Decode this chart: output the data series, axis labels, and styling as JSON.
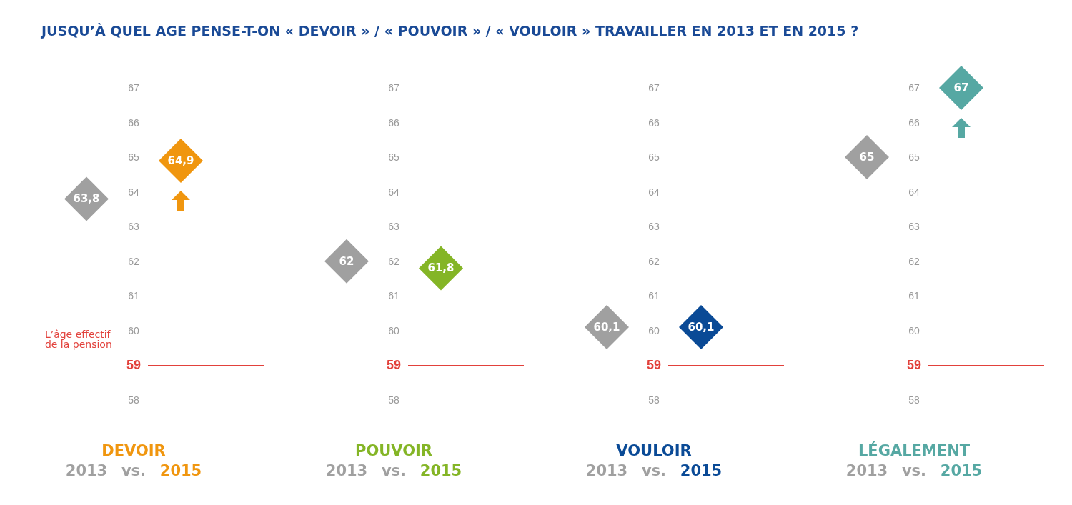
{
  "chart_data": [
    {
      "type": "scatter",
      "title": "JUSQU’À QUEL AGE PENSE-T-ON « DEVOIR » / « POUVOIR » / « VOULOIR » TRAVAILLER EN 2013 ET EN 2015 ?",
      "xlabel": "DEVOIR",
      "categories": [
        "2013",
        "2015"
      ],
      "values": [
        63.8,
        64.9
      ],
      "colors": [
        "#a0a0a0",
        "#f0960f"
      ],
      "value_labels": [
        "63,8",
        "64,9"
      ],
      "annotations": [
        "vs."
      ],
      "ylim": [
        58,
        67
      ],
      "yticks": [
        58,
        59,
        60,
        61,
        62,
        63,
        64,
        65,
        66,
        67
      ],
      "marker": "diamond",
      "grid": false,
      "ref_lines": [
        {
          "axis": "y",
          "value": 59,
          "label": "L’âge effectif de la pension",
          "color": "#e2413b"
        }
      ]
    },
    {
      "type": "scatter",
      "xlabel": "POUVOIR",
      "categories": [
        "2013",
        "2015"
      ],
      "values": [
        62,
        61.8
      ],
      "colors": [
        "#a0a0a0",
        "#84b526"
      ],
      "value_labels": [
        "62",
        "61,8"
      ],
      "annotations": [
        "vs."
      ],
      "ylim": [
        58,
        67
      ],
      "yticks": [
        58,
        59,
        60,
        61,
        62,
        63,
        64,
        65,
        66,
        67
      ],
      "marker": "diamond",
      "grid": false,
      "ref_lines": [
        {
          "axis": "y",
          "value": 59,
          "color": "#e2413b"
        }
      ]
    },
    {
      "type": "scatter",
      "xlabel": "VOULOIR",
      "categories": [
        "2013",
        "2015"
      ],
      "values": [
        60.1,
        60.1
      ],
      "colors": [
        "#a0a0a0",
        "#0a4a96"
      ],
      "value_labels": [
        "60,1",
        "60,1"
      ],
      "annotations": [
        "vs."
      ],
      "ylim": [
        58,
        67
      ],
      "yticks": [
        58,
        59,
        60,
        61,
        62,
        63,
        64,
        65,
        66,
        67
      ],
      "marker": "diamond",
      "grid": false,
      "ref_lines": [
        {
          "axis": "y",
          "value": 59,
          "color": "#e2413b"
        }
      ]
    },
    {
      "type": "scatter",
      "xlabel": "LÉGALEMENT",
      "categories": [
        "2013",
        "2015"
      ],
      "values": [
        65,
        67
      ],
      "colors": [
        "#a0a0a0",
        "#56a8a3"
      ],
      "value_labels": [
        "65",
        "67"
      ],
      "annotations": [
        "vs."
      ],
      "ylim": [
        58,
        67
      ],
      "yticks": [
        58,
        59,
        60,
        61,
        62,
        63,
        64,
        65,
        66,
        67
      ],
      "marker": "diamond",
      "grid": false,
      "ref_lines": [
        {
          "axis": "y",
          "value": 59,
          "color": "#e2413b"
        }
      ]
    }
  ]
}
